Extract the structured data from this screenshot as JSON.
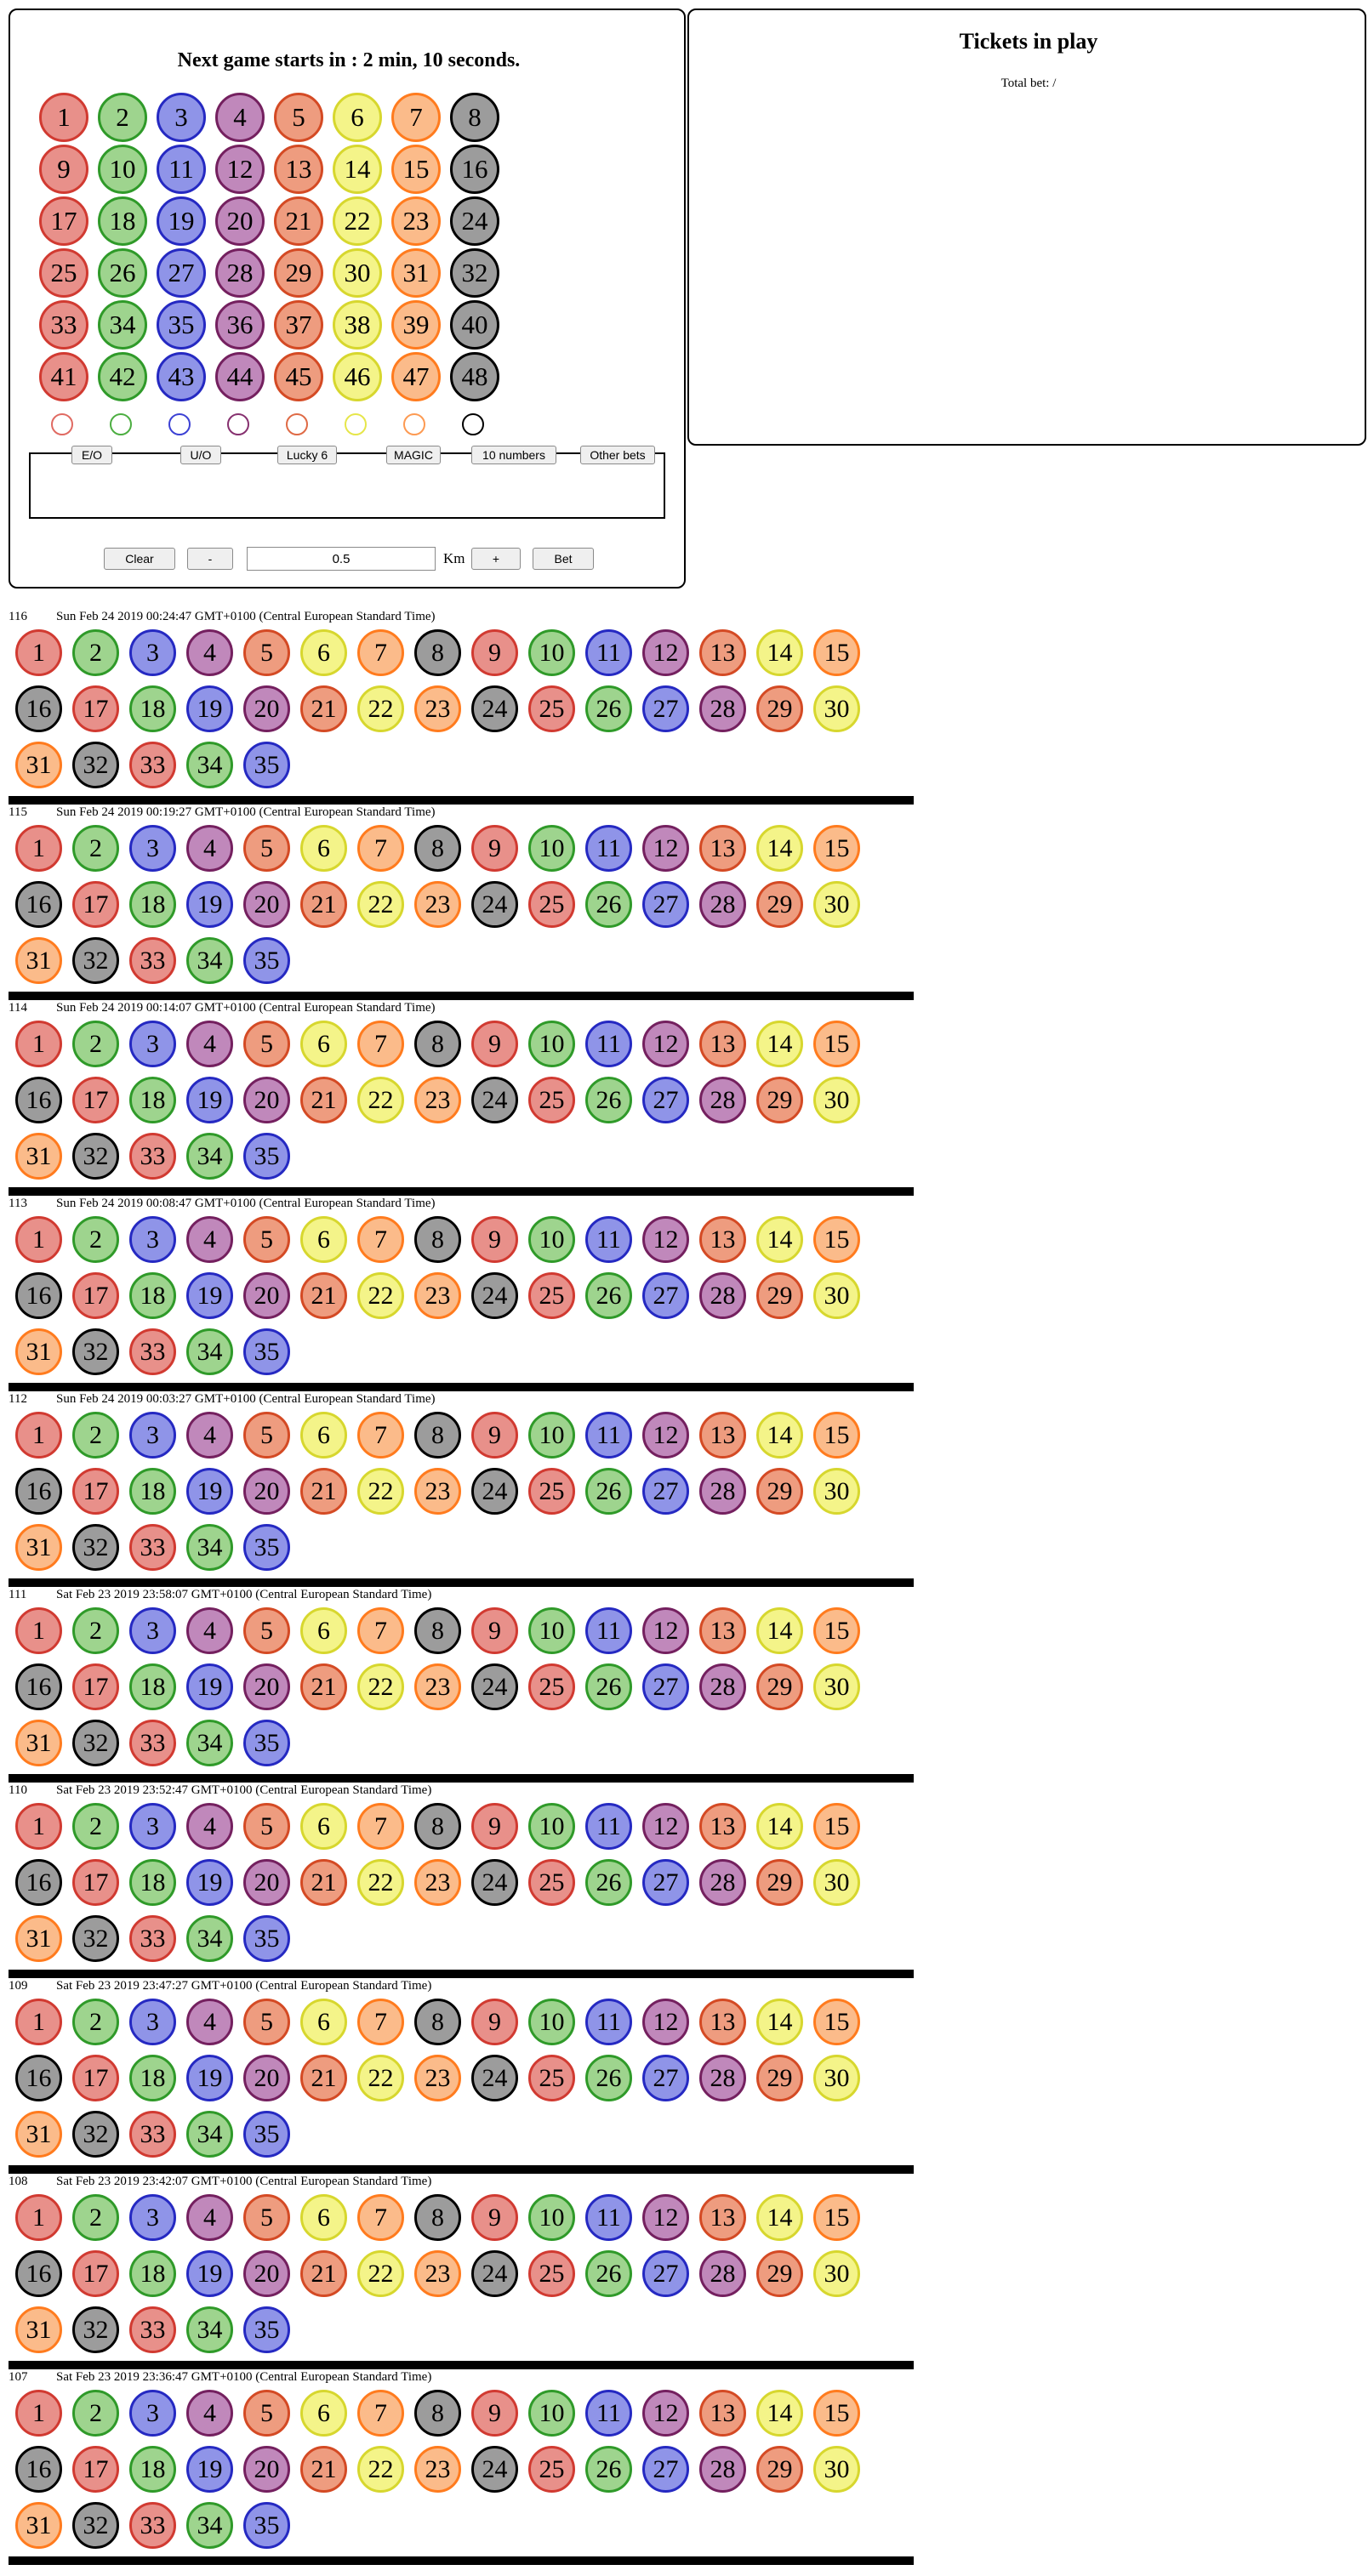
{
  "countdown": {
    "text": "Next game starts in : 2 min, 10 seconds."
  },
  "colors": {
    "red": "#e8908a",
    "green": "#9ed48e",
    "blue": "#8f94e8",
    "purple": "#c088bb",
    "salmon": "#ee9c7f",
    "yellow": "#f4f489",
    "orange": "#fbbb8a",
    "gray": "#9c9c9c"
  },
  "color_order": [
    "red",
    "green",
    "blue",
    "purple",
    "salmon",
    "yellow",
    "orange",
    "gray"
  ],
  "board": {
    "rows": [
      [
        1,
        2,
        3,
        4,
        5,
        6,
        7,
        8
      ],
      [
        9,
        10,
        11,
        12,
        13,
        14,
        15,
        16
      ],
      [
        17,
        18,
        19,
        20,
        21,
        22,
        23,
        24
      ],
      [
        25,
        26,
        27,
        28,
        29,
        30,
        31,
        32
      ],
      [
        33,
        34,
        35,
        36,
        37,
        38,
        39,
        40
      ],
      [
        41,
        42,
        43,
        44,
        45,
        46,
        47,
        48
      ]
    ]
  },
  "bet_tabs": [
    "E/O",
    "U/O",
    "Lucky 6",
    "MAGIC",
    "10 numbers",
    "Other bets"
  ],
  "controls": {
    "clear_label": "Clear",
    "minus_label": "-",
    "amount_value": "0.5",
    "currency": "Km",
    "plus_label": "+",
    "bet_label": "Bet"
  },
  "tickets": {
    "title": "Tickets in play",
    "total_bet": "Total bet: /"
  },
  "history": [
    {
      "id": "116",
      "time": "Sun Feb 24 2019 00:24:47 GMT+0100 (Central European Standard Time)",
      "balls": [
        1,
        2,
        3,
        4,
        5,
        6,
        7,
        8,
        9,
        10,
        11,
        12,
        13,
        14,
        15,
        16,
        17,
        18,
        19,
        20,
        21,
        22,
        23,
        24,
        25,
        26,
        27,
        28,
        29,
        30,
        31,
        32,
        33,
        34,
        35
      ]
    },
    {
      "id": "115",
      "time": "Sun Feb 24 2019 00:19:27 GMT+0100 (Central European Standard Time)",
      "balls": [
        1,
        2,
        3,
        4,
        5,
        6,
        7,
        8,
        9,
        10,
        11,
        12,
        13,
        14,
        15,
        16,
        17,
        18,
        19,
        20,
        21,
        22,
        23,
        24,
        25,
        26,
        27,
        28,
        29,
        30,
        31,
        32,
        33,
        34,
        35
      ]
    },
    {
      "id": "114",
      "time": "Sun Feb 24 2019 00:14:07 GMT+0100 (Central European Standard Time)",
      "balls": [
        1,
        2,
        3,
        4,
        5,
        6,
        7,
        8,
        9,
        10,
        11,
        12,
        13,
        14,
        15,
        16,
        17,
        18,
        19,
        20,
        21,
        22,
        23,
        24,
        25,
        26,
        27,
        28,
        29,
        30,
        31,
        32,
        33,
        34,
        35
      ]
    },
    {
      "id": "113",
      "time": "Sun Feb 24 2019 00:08:47 GMT+0100 (Central European Standard Time)",
      "balls": [
        1,
        2,
        3,
        4,
        5,
        6,
        7,
        8,
        9,
        10,
        11,
        12,
        13,
        14,
        15,
        16,
        17,
        18,
        19,
        20,
        21,
        22,
        23,
        24,
        25,
        26,
        27,
        28,
        29,
        30,
        31,
        32,
        33,
        34,
        35
      ]
    },
    {
      "id": "112",
      "time": "Sun Feb 24 2019 00:03:27 GMT+0100 (Central European Standard Time)",
      "balls": [
        1,
        2,
        3,
        4,
        5,
        6,
        7,
        8,
        9,
        10,
        11,
        12,
        13,
        14,
        15,
        16,
        17,
        18,
        19,
        20,
        21,
        22,
        23,
        24,
        25,
        26,
        27,
        28,
        29,
        30,
        31,
        32,
        33,
        34,
        35
      ]
    },
    {
      "id": "111",
      "time": "Sat Feb 23 2019 23:58:07 GMT+0100 (Central European Standard Time)",
      "balls": [
        1,
        2,
        3,
        4,
        5,
        6,
        7,
        8,
        9,
        10,
        11,
        12,
        13,
        14,
        15,
        16,
        17,
        18,
        19,
        20,
        21,
        22,
        23,
        24,
        25,
        26,
        27,
        28,
        29,
        30,
        31,
        32,
        33,
        34,
        35
      ]
    },
    {
      "id": "110",
      "time": "Sat Feb 23 2019 23:52:47 GMT+0100 (Central European Standard Time)",
      "balls": [
        1,
        2,
        3,
        4,
        5,
        6,
        7,
        8,
        9,
        10,
        11,
        12,
        13,
        14,
        15,
        16,
        17,
        18,
        19,
        20,
        21,
        22,
        23,
        24,
        25,
        26,
        27,
        28,
        29,
        30,
        31,
        32,
        33,
        34,
        35
      ]
    },
    {
      "id": "109",
      "time": "Sat Feb 23 2019 23:47:27 GMT+0100 (Central European Standard Time)",
      "balls": [
        1,
        2,
        3,
        4,
        5,
        6,
        7,
        8,
        9,
        10,
        11,
        12,
        13,
        14,
        15,
        16,
        17,
        18,
        19,
        20,
        21,
        22,
        23,
        24,
        25,
        26,
        27,
        28,
        29,
        30,
        31,
        32,
        33,
        34,
        35
      ]
    },
    {
      "id": "108",
      "time": "Sat Feb 23 2019 23:42:07 GMT+0100 (Central European Standard Time)",
      "balls": [
        1,
        2,
        3,
        4,
        5,
        6,
        7,
        8,
        9,
        10,
        11,
        12,
        13,
        14,
        15,
        16,
        17,
        18,
        19,
        20,
        21,
        22,
        23,
        24,
        25,
        26,
        27,
        28,
        29,
        30,
        31,
        32,
        33,
        34,
        35
      ]
    },
    {
      "id": "107",
      "time": "Sat Feb 23 2019 23:36:47 GMT+0100 (Central European Standard Time)",
      "balls": [
        1,
        2,
        3,
        4,
        5,
        6,
        7,
        8,
        9,
        10,
        11,
        12,
        13,
        14,
        15,
        16,
        17,
        18,
        19,
        20,
        21,
        22,
        23,
        24,
        25,
        26,
        27,
        28,
        29,
        30,
        31,
        32,
        33,
        34,
        35
      ]
    }
  ]
}
